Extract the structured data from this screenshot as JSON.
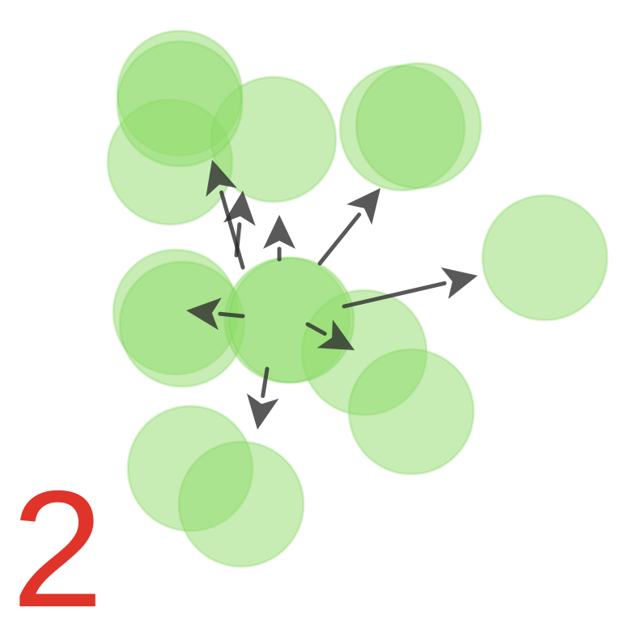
{
  "figure": {
    "panel_label": "2",
    "colors": {
      "node_fill": "#8fdc6a",
      "node_stroke": "#6fcf4a",
      "arrow": "#2a2a2a",
      "label": "#e0342a",
      "background": "#ffffff"
    },
    "node_count": 15,
    "arrow_count": 8
  }
}
